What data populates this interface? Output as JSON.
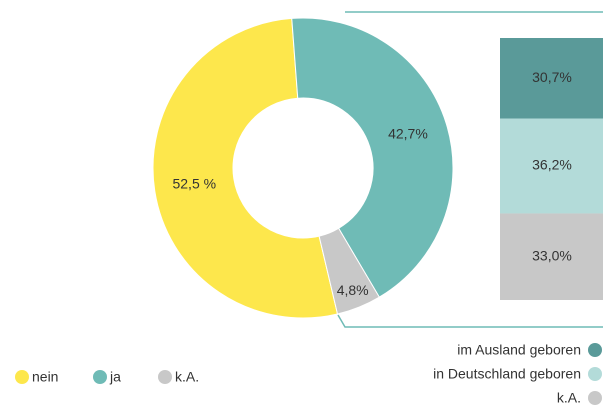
{
  "chart_data": [
    {
      "type": "pie",
      "categories": [
        "nein",
        "ja",
        "k.A."
      ],
      "values": [
        52.5,
        42.7,
        4.8
      ],
      "value_labels": [
        "52,5 %",
        "42,7%",
        "4,8%"
      ],
      "colors": [
        "#fde74c",
        "#6fbbb6",
        "#c8c8c8"
      ]
    },
    {
      "type": "bar",
      "categories": [
        "im Ausland geboren",
        "in Deutschland geboren",
        "k.A."
      ],
      "values": [
        30.7,
        36.2,
        33.0
      ],
      "value_labels": [
        "30,7%",
        "36,2%",
        "33,0%"
      ],
      "colors": [
        "#5a9a99",
        "#b3dbd9",
        "#c8c8c8"
      ]
    }
  ]
}
